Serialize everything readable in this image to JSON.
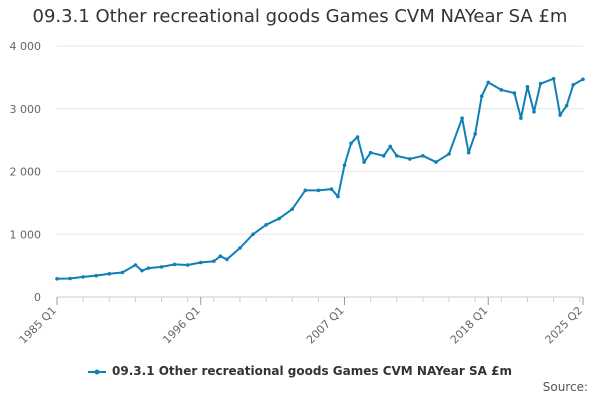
{
  "chart_data": {
    "type": "line",
    "title": "09.3.1 Other recreational goods Games CVM NAYear SA £m",
    "xlabel": "",
    "ylabel": "",
    "ylim": [
      0,
      4000
    ],
    "yticks": [
      0,
      1000,
      2000,
      3000,
      4000
    ],
    "ytick_labels": [
      "0",
      "1 000",
      "2 000",
      "3 000",
      "4 000"
    ],
    "x_range": [
      "1985 Q1",
      "2025 Q2"
    ],
    "xtick_labels": [
      "1985 Q1",
      "1996 Q1",
      "2007 Q1",
      "2018 Q1",
      "2025 Q2"
    ],
    "grid": "horizontal",
    "legend_position": "bottom",
    "series": [
      {
        "name": "09.3.1 Other recreational goods Games CVM NAYear SA £m",
        "color": "#0f80b5",
        "points": [
          [
            "1985 Q1",
            290
          ],
          [
            "1986 Q1",
            295
          ],
          [
            "1987 Q1",
            320
          ],
          [
            "1988 Q1",
            340
          ],
          [
            "1989 Q1",
            370
          ],
          [
            "1990 Q1",
            390
          ],
          [
            "1991 Q1",
            510
          ],
          [
            "1991 Q3",
            420
          ],
          [
            "1992 Q1",
            460
          ],
          [
            "1993 Q1",
            480
          ],
          [
            "1994 Q1",
            520
          ],
          [
            "1995 Q1",
            510
          ],
          [
            "1996 Q1",
            550
          ],
          [
            "1997 Q1",
            570
          ],
          [
            "1997 Q3",
            650
          ],
          [
            "1998 Q1",
            600
          ],
          [
            "1999 Q1",
            780
          ],
          [
            "2000 Q1",
            1000
          ],
          [
            "2001 Q1",
            1150
          ],
          [
            "2002 Q1",
            1250
          ],
          [
            "2003 Q1",
            1400
          ],
          [
            "2004 Q1",
            1700
          ],
          [
            "2005 Q1",
            1700
          ],
          [
            "2006 Q1",
            1720
          ],
          [
            "2006 Q3",
            1600
          ],
          [
            "2007 Q1",
            2100
          ],
          [
            "2007 Q3",
            2450
          ],
          [
            "2008 Q1",
            2550
          ],
          [
            "2008 Q3",
            2150
          ],
          [
            "2009 Q1",
            2300
          ],
          [
            "2010 Q1",
            2250
          ],
          [
            "2010 Q3",
            2400
          ],
          [
            "2011 Q1",
            2250
          ],
          [
            "2012 Q1",
            2200
          ],
          [
            "2013 Q1",
            2250
          ],
          [
            "2014 Q1",
            2150
          ],
          [
            "2015 Q1",
            2280
          ],
          [
            "2016 Q1",
            2850
          ],
          [
            "2016 Q3",
            2300
          ],
          [
            "2017 Q1",
            2600
          ],
          [
            "2017 Q3",
            3200
          ],
          [
            "2018 Q1",
            3420
          ],
          [
            "2019 Q1",
            3300
          ],
          [
            "2020 Q1",
            3250
          ],
          [
            "2020 Q3",
            2850
          ],
          [
            "2021 Q1",
            3350
          ],
          [
            "2021 Q3",
            2950
          ],
          [
            "2022 Q1",
            3400
          ],
          [
            "2023 Q1",
            3480
          ],
          [
            "2023 Q3",
            2900
          ],
          [
            "2024 Q1",
            3050
          ],
          [
            "2024 Q3",
            3380
          ],
          [
            "2025 Q2",
            3470
          ]
        ]
      }
    ]
  },
  "source_label": "Source:"
}
